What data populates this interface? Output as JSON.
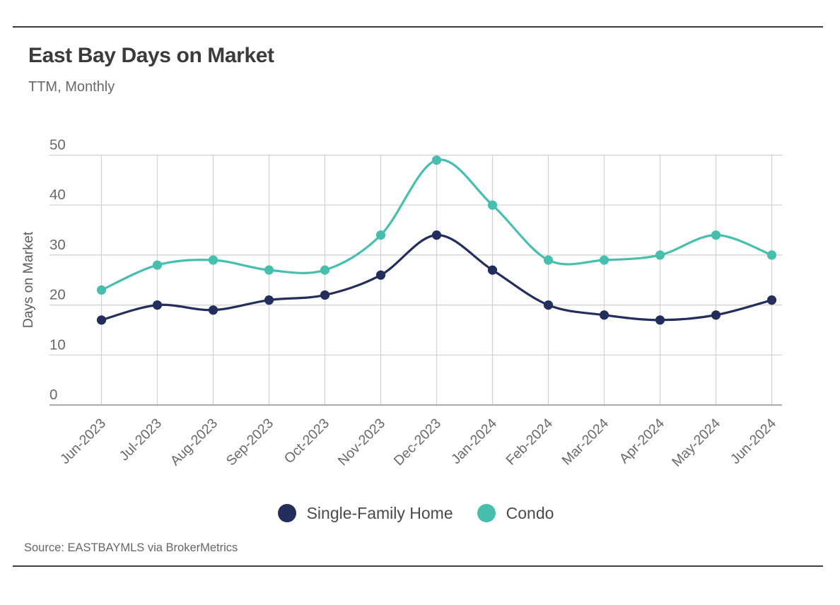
{
  "header": {
    "title": "East Bay Days on Market",
    "subtitle": "TTM, Monthly"
  },
  "chart_data": {
    "type": "line",
    "title": "East Bay Days on Market",
    "subtitle": "TTM, Monthly",
    "categories": [
      "Jun-2023",
      "Jul-2023",
      "Aug-2023",
      "Sep-2023",
      "Oct-2023",
      "Nov-2023",
      "Dec-2023",
      "Jan-2024",
      "Feb-2024",
      "Mar-2024",
      "Apr-2024",
      "May-2024",
      "Jun-2024"
    ],
    "series": [
      {
        "name": "Single-Family Home",
        "color": "#232e5c",
        "values": [
          17,
          20,
          19,
          21,
          22,
          26,
          34,
          27,
          20,
          18,
          17,
          18,
          21
        ]
      },
      {
        "name": "Condo",
        "color": "#47bfae",
        "values": [
          23,
          28,
          29,
          27,
          27,
          34,
          49,
          40,
          29,
          29,
          30,
          34,
          30
        ]
      }
    ],
    "xlabel": "",
    "ylabel": "Days on Market",
    "ylim": [
      0,
      50
    ],
    "yticks": [
      0,
      10,
      20,
      30,
      40,
      50
    ],
    "grid": true,
    "line_style": "smooth",
    "marker": "circle",
    "legend_position": "bottom"
  },
  "footer": {
    "source": "Source:  EASTBAYMLS via BrokerMetrics"
  },
  "colors": {
    "accent_navy": "#232e5c",
    "accent_teal": "#47bfae",
    "grid": "#cfcfcf",
    "baseline": "#8f8f8f",
    "rule": "#3d3d3d",
    "title_text": "#3b3b3b",
    "muted_text": "#696969"
  }
}
